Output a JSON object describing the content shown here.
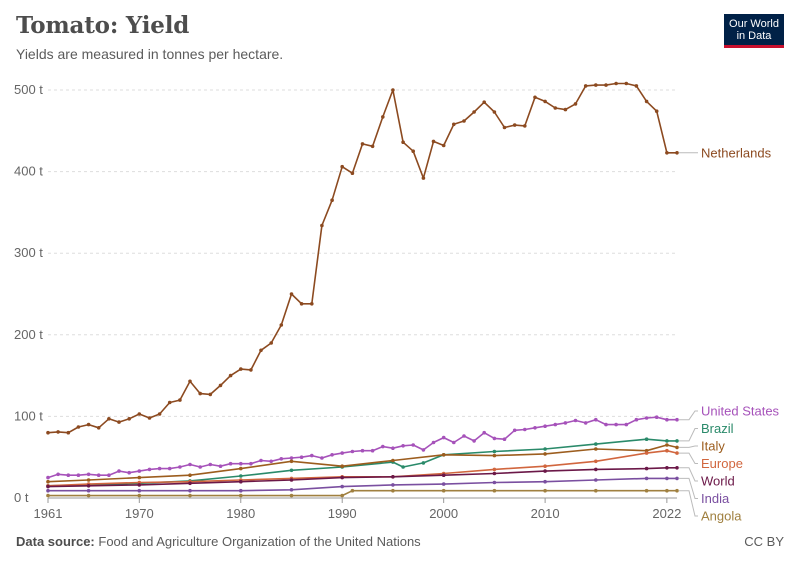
{
  "header": {
    "title": "Tomato: Yield",
    "subtitle": "Yields are measured in tonnes per hectare.",
    "logo_line1": "Our World",
    "logo_line2": "in Data"
  },
  "footer": {
    "source_label": "Data source:",
    "source_text": "Food and Agriculture Organization of the United Nations",
    "license": "CC BY"
  },
  "chart_data": {
    "type": "line",
    "title": "Tomato: Yield",
    "subtitle": "Yields are measured in tonnes per hectare.",
    "xlim": [
      1961,
      2023
    ],
    "ylim": [
      0,
      500
    ],
    "x_ticks": [
      1961,
      1970,
      1980,
      1990,
      2000,
      2010,
      2022
    ],
    "y_ticks": [
      0,
      100,
      200,
      300,
      400,
      500
    ],
    "y_tick_labels": [
      "0 t",
      "100 t",
      "200 t",
      "300 t",
      "400 t",
      "500 t"
    ],
    "grid": "horizontal-dashed",
    "legend": "right-end-labels",
    "series": [
      {
        "name": "Netherlands",
        "color": "#8c4a20",
        "x": [
          1961,
          1962,
          1963,
          1964,
          1965,
          1966,
          1967,
          1968,
          1969,
          1970,
          1971,
          1972,
          1973,
          1974,
          1975,
          1976,
          1977,
          1978,
          1979,
          1980,
          1981,
          1982,
          1983,
          1984,
          1985,
          1986,
          1987,
          1988,
          1989,
          1990,
          1991,
          1992,
          1993,
          1994,
          1995,
          1996,
          1997,
          1998,
          1999,
          2000,
          2001,
          2002,
          2003,
          2004,
          2005,
          2006,
          2007,
          2008,
          2009,
          2010,
          2011,
          2012,
          2013,
          2014,
          2015,
          2016,
          2017,
          2018,
          2019,
          2020,
          2021,
          2022,
          2023
        ],
        "values": [
          80,
          81,
          80,
          87,
          90,
          86,
          97,
          93,
          97,
          103,
          98,
          103,
          117,
          120,
          143,
          128,
          127,
          138,
          150,
          158,
          157,
          181,
          190,
          212,
          250,
          238,
          238,
          334,
          365,
          406,
          398,
          434,
          431,
          467,
          500,
          436,
          425,
          392,
          437,
          432,
          458,
          462,
          473,
          485,
          473,
          454,
          457,
          456,
          491,
          486,
          478,
          476,
          483,
          505,
          506,
          506,
          508,
          508,
          505,
          486,
          474,
          423,
          423
        ]
      },
      {
        "name": "United States",
        "color": "#a652ba",
        "x": [
          1961,
          1962,
          1963,
          1964,
          1965,
          1966,
          1967,
          1968,
          1969,
          1970,
          1971,
          1972,
          1973,
          1974,
          1975,
          1976,
          1977,
          1978,
          1979,
          1980,
          1981,
          1982,
          1983,
          1984,
          1985,
          1986,
          1987,
          1988,
          1989,
          1990,
          1991,
          1992,
          1993,
          1994,
          1995,
          1996,
          1997,
          1998,
          1999,
          2000,
          2001,
          2002,
          2003,
          2004,
          2005,
          2006,
          2007,
          2008,
          2009,
          2010,
          2011,
          2012,
          2013,
          2014,
          2015,
          2016,
          2017,
          2018,
          2019,
          2020,
          2021,
          2022,
          2023
        ],
        "values": [
          25,
          29,
          28,
          28,
          29,
          28,
          28,
          33,
          31,
          33,
          35,
          36,
          36,
          38,
          41,
          38,
          41,
          39,
          42,
          42,
          42,
          46,
          45,
          48,
          49,
          50,
          52,
          49,
          53,
          55,
          57,
          58,
          58,
          63,
          61,
          64,
          65,
          59,
          68,
          74,
          68,
          76,
          70,
          80,
          73,
          72,
          83,
          84,
          86,
          88,
          90,
          92,
          95,
          92,
          96,
          90,
          90,
          90,
          96,
          98,
          99,
          96,
          96
        ]
      },
      {
        "name": "Brazil",
        "color": "#2a8a6a",
        "x": [
          1961,
          1965,
          1970,
          1975,
          1980,
          1985,
          1990,
          1995,
          1996,
          1998,
          2000,
          2005,
          2010,
          2015,
          2020,
          2022,
          2023
        ],
        "values": [
          15,
          16,
          18,
          21,
          27,
          34,
          38,
          44,
          38,
          43,
          53,
          57,
          60,
          66,
          72,
          70,
          70
        ]
      },
      {
        "name": "Italy",
        "color": "#9c5d1e",
        "x": [
          1961,
          1965,
          1970,
          1975,
          1980,
          1985,
          1990,
          1995,
          2000,
          2005,
          2010,
          2015,
          2020,
          2022,
          2023
        ],
        "values": [
          20,
          22,
          25,
          28,
          36,
          45,
          39,
          46,
          53,
          52,
          54,
          60,
          58,
          65,
          62
        ]
      },
      {
        "name": "Europe",
        "color": "#d1663e",
        "x": [
          1961,
          1965,
          1970,
          1975,
          1980,
          1985,
          1990,
          1995,
          2000,
          2005,
          2010,
          2015,
          2020,
          2022,
          2023
        ],
        "values": [
          15,
          17,
          19,
          20,
          22,
          24,
          26,
          26,
          30,
          35,
          39,
          45,
          55,
          58,
          55
        ]
      },
      {
        "name": "World",
        "color": "#6b1848",
        "x": [
          1961,
          1965,
          1970,
          1975,
          1980,
          1985,
          1990,
          1995,
          2000,
          2005,
          2010,
          2015,
          2020,
          2022,
          2023
        ],
        "values": [
          14,
          15,
          16,
          18,
          20,
          22,
          25,
          26,
          28,
          30,
          33,
          35,
          36,
          37,
          37
        ]
      },
      {
        "name": "India",
        "color": "#7a4fa0",
        "x": [
          1961,
          1965,
          1970,
          1975,
          1980,
          1985,
          1990,
          1995,
          2000,
          2005,
          2010,
          2015,
          2020,
          2022,
          2023
        ],
        "values": [
          9,
          9,
          9,
          9,
          9,
          10,
          14,
          16,
          17,
          19,
          20,
          22,
          24,
          24,
          24
        ]
      },
      {
        "name": "Angola",
        "color": "#a08040",
        "x": [
          1961,
          1965,
          1970,
          1975,
          1980,
          1985,
          1990,
          1991,
          1995,
          2000,
          2005,
          2010,
          2015,
          2020,
          2022,
          2023
        ],
        "values": [
          3,
          3,
          3,
          3,
          3,
          3,
          3,
          9,
          9,
          9,
          9,
          9,
          9,
          9,
          9,
          9
        ]
      }
    ]
  }
}
